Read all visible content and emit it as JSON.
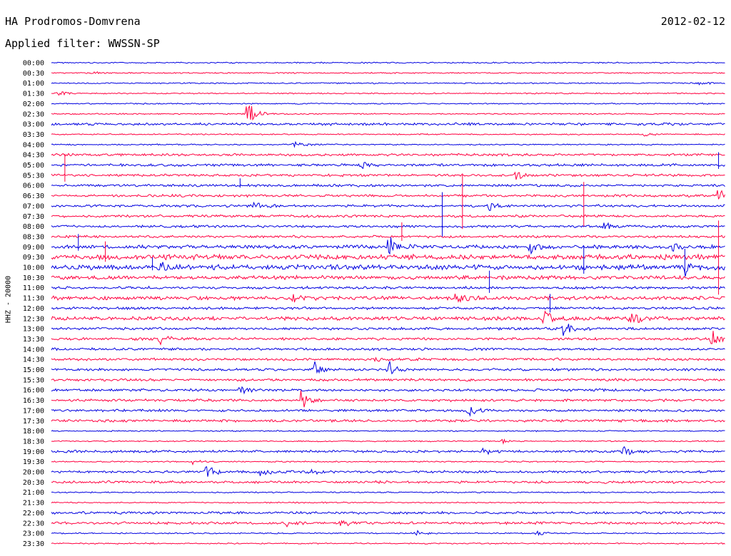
{
  "header": {
    "title": "HA Prodromos-Domvrena",
    "date": "2012-02-12",
    "filter_label": "Applied filter: WWSSN-SP"
  },
  "chart_data": {
    "type": "line",
    "title": "HA Prodromos-Domvrena",
    "ylabel": "HHZ - 20000",
    "grid": false,
    "series_colors": [
      "#0000e0",
      "#ff0040"
    ],
    "rows": [
      "00:00",
      "00:30",
      "01:00",
      "01:30",
      "02:00",
      "02:30",
      "03:00",
      "03:30",
      "04:00",
      "04:30",
      "05:00",
      "05:30",
      "06:00",
      "06:30",
      "07:00",
      "07:30",
      "08:00",
      "08:30",
      "09:00",
      "09:30",
      "10:00",
      "10:30",
      "11:00",
      "11:30",
      "12:00",
      "12:30",
      "13:00",
      "13:30",
      "14:00",
      "14:30",
      "15:00",
      "15:30",
      "16:00",
      "16:30",
      "17:00",
      "17:30",
      "18:00",
      "18:30",
      "19:00",
      "19:30",
      "20:00",
      "20:30",
      "21:00",
      "21:30",
      "22:00",
      "22:30",
      "23:00",
      "23:30"
    ],
    "noise_level": [
      1,
      1,
      1,
      1,
      1,
      1,
      2,
      1,
      1,
      2,
      2,
      2,
      2,
      2,
      2,
      2,
      2,
      2,
      3,
      4,
      4,
      3,
      2,
      3,
      2,
      3,
      2,
      2,
      2,
      2,
      2,
      2,
      2,
      2,
      2,
      2,
      1,
      1,
      2,
      1,
      2,
      2,
      1,
      1,
      2,
      2,
      1,
      1
    ],
    "events": [
      {
        "row": 1,
        "pos": 0.06,
        "amp": 3
      },
      {
        "row": 3,
        "pos": 0.01,
        "amp": 4
      },
      {
        "row": 2,
        "pos": 0.96,
        "amp": 4
      },
      {
        "row": 5,
        "pos": 0.29,
        "amp": 24
      },
      {
        "row": 7,
        "pos": 0.88,
        "amp": 3
      },
      {
        "row": 8,
        "pos": 0.36,
        "amp": 6
      },
      {
        "row": 10,
        "pos": 0.46,
        "amp": 6
      },
      {
        "row": 11,
        "pos": 0.69,
        "amp": 6
      },
      {
        "row": 13,
        "pos": 0.99,
        "amp": 14
      },
      {
        "row": 14,
        "pos": 0.3,
        "amp": 7
      },
      {
        "row": 14,
        "pos": 0.65,
        "amp": 7
      },
      {
        "row": 16,
        "pos": 0.82,
        "amp": 8
      },
      {
        "row": 18,
        "pos": 0.5,
        "amp": 20
      },
      {
        "row": 18,
        "pos": 0.71,
        "amp": 12
      },
      {
        "row": 18,
        "pos": 0.92,
        "amp": 10
      },
      {
        "row": 20,
        "pos": 0.16,
        "amp": 10
      },
      {
        "row": 20,
        "pos": 0.94,
        "amp": 12
      },
      {
        "row": 23,
        "pos": 0.36,
        "amp": 8
      },
      {
        "row": 23,
        "pos": 0.6,
        "amp": 10
      },
      {
        "row": 25,
        "pos": 0.73,
        "amp": 18
      },
      {
        "row": 25,
        "pos": 0.86,
        "amp": 16
      },
      {
        "row": 26,
        "pos": 0.76,
        "amp": 18
      },
      {
        "row": 27,
        "pos": 0.16,
        "amp": 10
      },
      {
        "row": 27,
        "pos": 0.98,
        "amp": 12
      },
      {
        "row": 29,
        "pos": 0.48,
        "amp": 4
      },
      {
        "row": 30,
        "pos": 0.39,
        "amp": 12
      },
      {
        "row": 30,
        "pos": 0.5,
        "amp": 14
      },
      {
        "row": 31,
        "pos": 0.28,
        "amp": 3
      },
      {
        "row": 32,
        "pos": 0.28,
        "amp": 6
      },
      {
        "row": 33,
        "pos": 0.37,
        "amp": 16
      },
      {
        "row": 34,
        "pos": 0.62,
        "amp": 12
      },
      {
        "row": 37,
        "pos": 0.67,
        "amp": 4
      },
      {
        "row": 38,
        "pos": 0.64,
        "amp": 6
      },
      {
        "row": 38,
        "pos": 0.85,
        "amp": 10
      },
      {
        "row": 39,
        "pos": 0.21,
        "amp": 5
      },
      {
        "row": 40,
        "pos": 0.23,
        "amp": 14
      },
      {
        "row": 40,
        "pos": 0.31,
        "amp": 8
      },
      {
        "row": 40,
        "pos": 0.38,
        "amp": 8
      },
      {
        "row": 45,
        "pos": 0.35,
        "amp": 6
      },
      {
        "row": 45,
        "pos": 0.43,
        "amp": 7
      },
      {
        "row": 46,
        "pos": 0.54,
        "amp": 7
      },
      {
        "row": 46,
        "pos": 0.72,
        "amp": 5
      }
    ],
    "spikes": [
      {
        "row": 11,
        "pos": 0.02,
        "amp": 30
      },
      {
        "row": 10,
        "pos": 0.99,
        "amp": 18
      },
      {
        "row": 15,
        "pos": 0.61,
        "amp": 60
      },
      {
        "row": 15,
        "pos": 0.79,
        "amp": 48
      },
      {
        "row": 16,
        "pos": 0.58,
        "amp": 48
      },
      {
        "row": 17,
        "pos": 0.52,
        "amp": 20
      },
      {
        "row": 18,
        "pos": 0.04,
        "amp": 18
      },
      {
        "row": 19,
        "pos": 0.08,
        "amp": 22
      },
      {
        "row": 20,
        "pos": 0.15,
        "amp": 14
      },
      {
        "row": 20,
        "pos": 0.79,
        "amp": 30
      },
      {
        "row": 20,
        "pos": 0.94,
        "amp": 26
      },
      {
        "row": 22,
        "pos": 0.65,
        "amp": 24
      },
      {
        "row": 24,
        "pos": 0.74,
        "amp": 20
      },
      {
        "row": 21,
        "pos": 0.99,
        "amp": 80
      },
      {
        "row": 12,
        "pos": 0.28,
        "amp": 10
      }
    ]
  }
}
